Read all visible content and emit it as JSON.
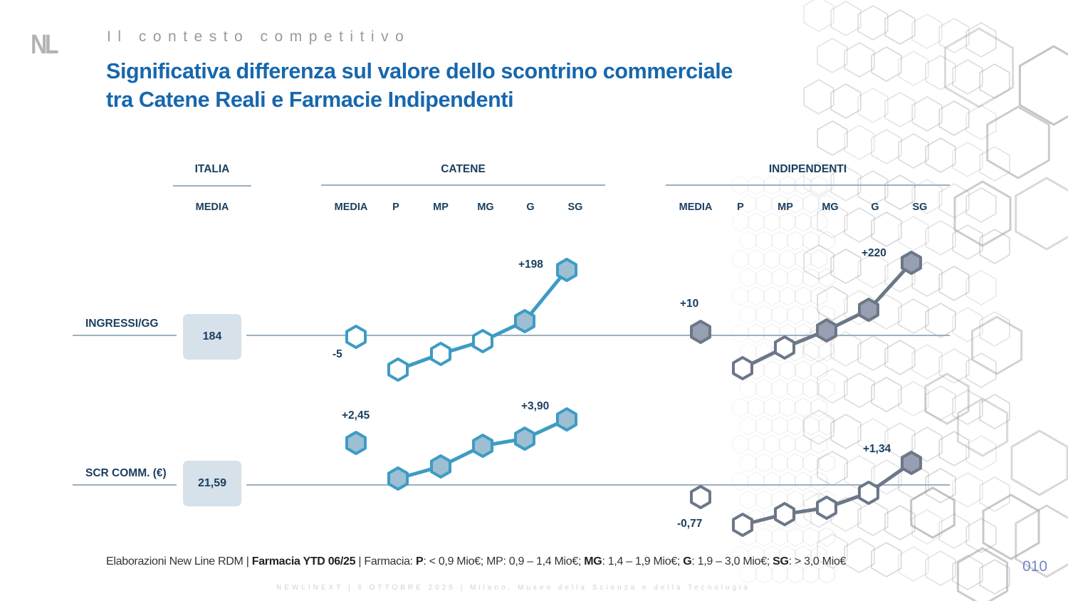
{
  "header": {
    "logo_text": "NL",
    "kicker": "Il contesto competitivo",
    "title_line1": "Significativa differenza sul valore dello scontrino commerciale",
    "title_line2": "tra Catene Reali e Farmacie Indipendenti"
  },
  "colors": {
    "title_blue": "#1767ad",
    "dark_navy": "#1b3f60",
    "catene_line": "#3d9cc4",
    "catene_fill": "#9ebfd3",
    "indip_line": "#6c7788",
    "indip_fill": "#97a0b3",
    "hollow_fill": "#ffffff",
    "baseline": "#9bb0bf",
    "italy_box": "#d6e1ea"
  },
  "chart_data": {
    "type": "line",
    "title": "Significativa differenza sul valore dello scontrino commerciale tra Catene Reali e Farmacie Indipendenti",
    "note": "Marker levels are vertical offsets from the Italy average baseline, read from the markers' drawn positions (relative units); only labeled values are printed on the slide.",
    "groups": [
      {
        "name": "ITALIA",
        "subheaders": [
          "MEDIA"
        ]
      },
      {
        "name": "CATENE",
        "subheaders": [
          "MEDIA",
          "P",
          "MP",
          "MG",
          "G",
          "SG"
        ]
      },
      {
        "name": "INDIPENDENTI",
        "subheaders": [
          "MEDIA",
          "P",
          "MP",
          "MG",
          "G",
          "SG"
        ]
      }
    ],
    "rows": [
      {
        "label": "INGRESSI/GG",
        "italy_media": "184",
        "catene": {
          "levels": [
            -0.1,
            -2.4,
            -1.3,
            -0.4,
            1.0,
            4.6
          ],
          "filled": [
            false,
            false,
            false,
            false,
            true,
            true
          ],
          "media_label": "-5",
          "sg_label": "+198"
        },
        "indipendenti": {
          "levels": [
            0.25,
            -2.3,
            -0.85,
            0.35,
            1.8,
            5.1
          ],
          "filled": [
            true,
            false,
            false,
            true,
            true,
            true
          ],
          "media_label": "+10",
          "sg_label": "+220"
        }
      },
      {
        "label": "SCR COMM. (€)",
        "italy_media": "21,59",
        "catene": {
          "levels": [
            2.95,
            0.45,
            1.3,
            2.75,
            3.25,
            4.6
          ],
          "filled": [
            true,
            true,
            true,
            true,
            true,
            true
          ],
          "media_label": "+2,45",
          "sg_label": "+3,90"
        },
        "indipendenti": {
          "levels": [
            -0.85,
            -2.8,
            -2.05,
            -1.6,
            -0.55,
            1.55
          ],
          "filled": [
            false,
            false,
            false,
            false,
            false,
            true
          ],
          "media_label": "-0,77",
          "sg_label": "+1,34"
        }
      }
    ]
  },
  "footnote": {
    "part1": "Elaborazioni New Line RDM | ",
    "bold1": "Farmacia YTD 06/25",
    "part2": " | Farmacia: ",
    "bold_p": "P",
    "part3": ": < 0,9 Mio€; MP: 0,9 – 1,4 Mio€; ",
    "bold_mg": "MG",
    "part4": ": 1,4 – 1,9 Mio€; ",
    "bold_g": "G",
    "part5": ": 1,9 – 3,0 Mio€; ",
    "bold_sg": "SG",
    "part6": ": > 3,0 Mio€"
  },
  "event_footer": "NEWLINEXT | 6 OTTOBRE 2025 | Milano, Museo della Scienza e della Tecnologia",
  "page_number": "010"
}
